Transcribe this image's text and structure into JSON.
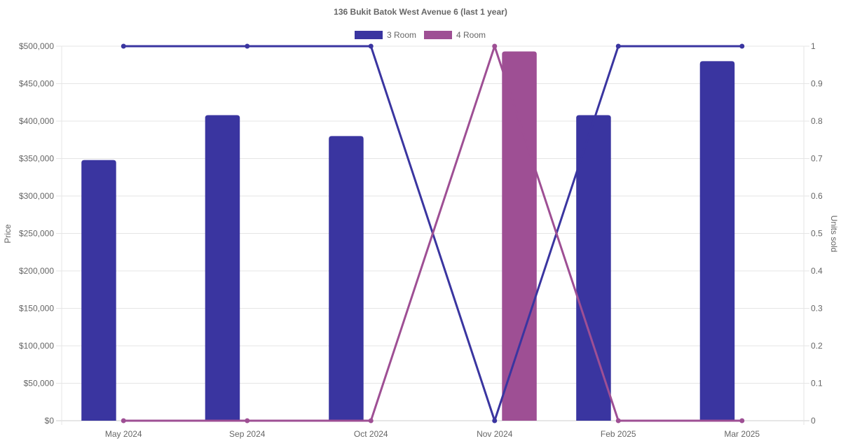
{
  "chart_data": {
    "type": "bar",
    "title": "136 Bukit Batok West Avenue 6 (last 1 year)",
    "categories": [
      "May 2024",
      "Sep 2024",
      "Oct 2024",
      "Nov 2024",
      "Feb 2025",
      "Mar 2025"
    ],
    "ylabel_left": "Price",
    "ylabel_right": "Units sold",
    "ylim_left": [
      0,
      500000
    ],
    "ylim_right": [
      0,
      1
    ],
    "yticks_left": [
      "$0",
      "$50,000",
      "$100,000",
      "$150,000",
      "$200,000",
      "$250,000",
      "$300,000",
      "$350,000",
      "$400,000",
      "$450,000",
      "$500,000"
    ],
    "yticks_right": [
      "0",
      "0.1",
      "0.2",
      "0.3",
      "0.4",
      "0.5",
      "0.6",
      "0.7",
      "0.8",
      "0.9",
      "1"
    ],
    "grid": true,
    "legend_position": "top",
    "series": [
      {
        "name": "3 Room",
        "color": "#3a35a0",
        "price": [
          348000,
          408000,
          380000,
          null,
          408000,
          480000
        ],
        "units": [
          1,
          1,
          1,
          0,
          1,
          1
        ]
      },
      {
        "name": "4 Room",
        "color": "#9e4f94",
        "price": [
          null,
          null,
          null,
          493000,
          null,
          null
        ],
        "units": [
          0,
          0,
          0,
          1,
          0,
          0
        ]
      }
    ]
  }
}
